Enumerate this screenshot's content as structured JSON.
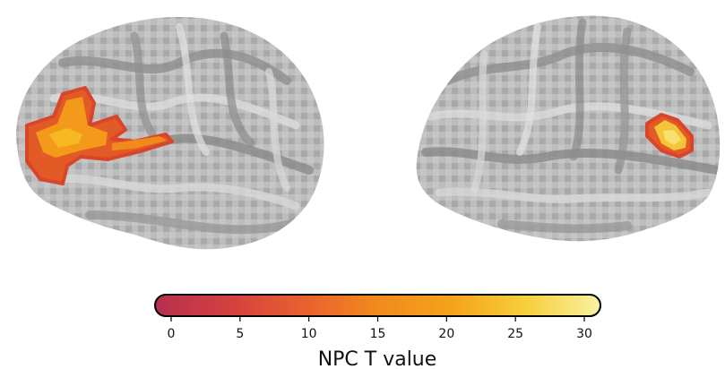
{
  "colorbar": {
    "title": "NPC T value",
    "range": [
      0,
      30
    ],
    "ticks": [
      {
        "value": 0,
        "label": "0"
      },
      {
        "value": 5,
        "label": "5"
      },
      {
        "value": 10,
        "label": "10"
      },
      {
        "value": 15,
        "label": "15"
      },
      {
        "value": 20,
        "label": "20"
      },
      {
        "value": 25,
        "label": "25"
      },
      {
        "value": 30,
        "label": "30"
      }
    ],
    "colormap": [
      "#b5304f",
      "#d4403f",
      "#e8602f",
      "#f28a1c",
      "#f5a31a",
      "#f7cf3c",
      "#f9f2a0"
    ]
  },
  "views": [
    {
      "hemisphere": "left",
      "view": "lateral",
      "activation_colors": [
        "#e05a2a",
        "#f08a1e",
        "#f6b020"
      ]
    },
    {
      "hemisphere": "right",
      "view": "lateral",
      "activation_colors": [
        "#e05a2a",
        "#f3c63a",
        "#f8e070"
      ]
    }
  ]
}
